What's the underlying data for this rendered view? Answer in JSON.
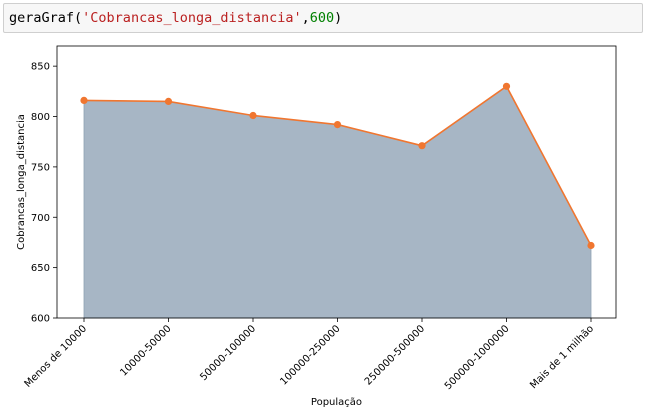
{
  "code": {
    "func": "geraGraf",
    "open": "(",
    "arg1": "'Cobrancas_longa_distancia'",
    "comma": ",",
    "arg2": "600",
    "close": ")"
  },
  "chart_data": {
    "type": "area",
    "categories": [
      "Menos de 10000",
      "10000-50000",
      "50000-100000",
      "100000-250000",
      "250000-500000",
      "500000-1000000",
      "Mais de 1 milhão"
    ],
    "values": [
      816,
      815,
      801,
      792,
      771,
      830,
      672
    ],
    "xlabel": "População",
    "ylabel": "Cobrancas_longa_distancia",
    "ylim": [
      600,
      870
    ],
    "yticks": [
      600,
      650,
      700,
      750,
      800,
      850
    ],
    "grid": false,
    "colors": {
      "fill": "#a7b6c5",
      "fill_edge": "#8fa2b4",
      "line": "#f07630",
      "marker": "#f07630"
    }
  }
}
